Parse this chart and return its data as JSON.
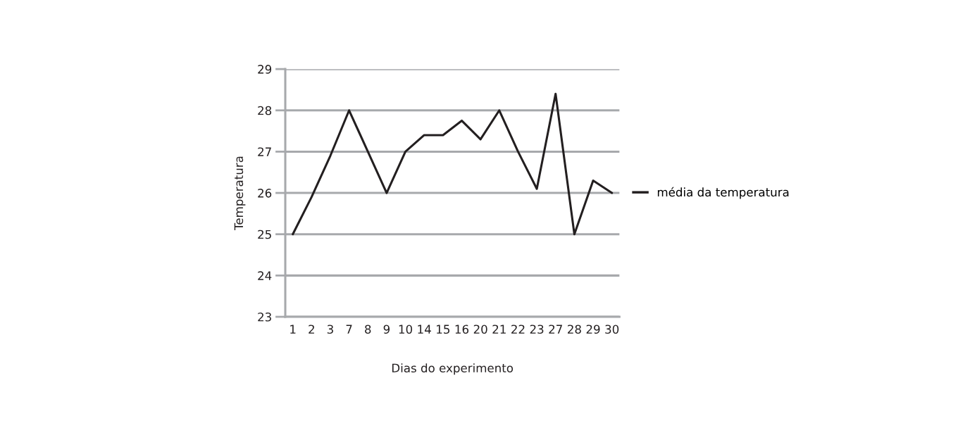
{
  "chart_data": {
    "type": "line",
    "xlabel": "Dias do experimento",
    "ylabel": "Temperatura",
    "categories": [
      "1",
      "2",
      "3",
      "7",
      "8",
      "9",
      "10",
      "14",
      "15",
      "16",
      "20",
      "21",
      "22",
      "23",
      "27",
      "28",
      "29",
      "30"
    ],
    "series": [
      {
        "name": "média da temperatura",
        "color": "#231f20",
        "values": [
          25,
          25.9,
          26.9,
          28,
          27,
          26,
          27,
          27.4,
          27.4,
          27.75,
          27.3,
          28,
          27,
          26.1,
          28.4,
          25,
          26.3,
          26
        ]
      }
    ],
    "ylim": [
      23,
      29
    ],
    "yticks": [
      23,
      24,
      25,
      26,
      27,
      28,
      29
    ],
    "grid": "y",
    "legend": "right",
    "marker": "none",
    "line_style": "solid"
  }
}
